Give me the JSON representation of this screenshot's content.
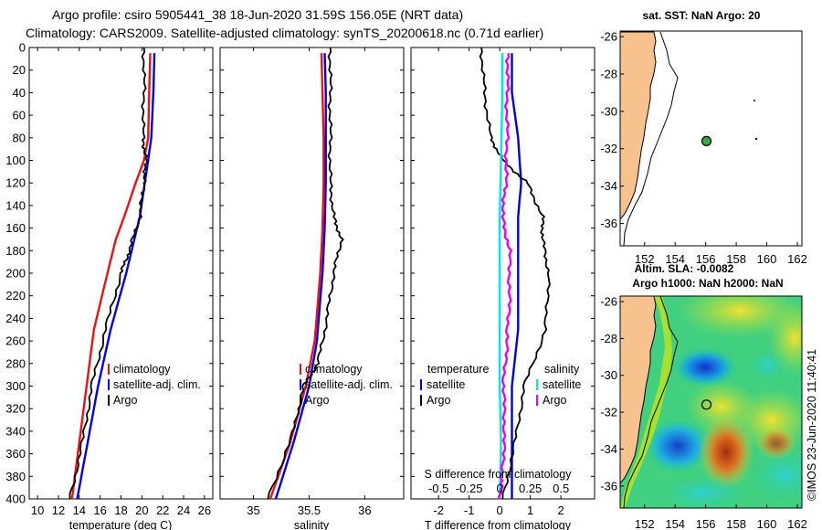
{
  "title": {
    "line1": "Argo profile: csiro 5905441_38 18-Jun-2020 31.59S 156.05E (NRT data)",
    "line2": "Climatology: CARS2009. Satellite-adjusted climatology: synTS_20200618.nc (0.71d earlier)"
  },
  "credit": "©IMOS 23-Jun-2020 11:40:41",
  "colors": {
    "red": "#ee1111",
    "blue": "#0000ee",
    "black": "#000000",
    "cyan": "#00e5ee",
    "magenta": "#ee00ee",
    "land": "#f8c28e"
  },
  "chart_data": [
    {
      "type": "line",
      "name": "temperature",
      "xlabel": "temperature (deg C)",
      "xlim": [
        9.2,
        26.8
      ],
      "ylim": [
        0,
        400
      ],
      "xticks": [
        "10",
        "12",
        "14",
        "16",
        "18",
        "20",
        "22",
        "24",
        "26"
      ],
      "yticks": [
        "0",
        "20",
        "40",
        "60",
        "80",
        "100",
        "120",
        "140",
        "160",
        "180",
        "200",
        "220",
        "240",
        "260",
        "280",
        "300",
        "320",
        "340",
        "360",
        "380",
        "400"
      ],
      "legend": [
        "climatology",
        "satellite-adj. clim.",
        "Argo"
      ],
      "series": [
        {
          "name": "climatology",
          "color": "red",
          "depth": [
            5,
            40,
            80,
            100,
            120,
            150,
            170,
            200,
            250,
            300,
            350,
            400
          ],
          "values": [
            20.8,
            20.7,
            20.6,
            20.2,
            19.4,
            18.3,
            17.5,
            16.7,
            15.4,
            14.7,
            14.0,
            13.3
          ]
        },
        {
          "name": "satellite-adj. clim.",
          "color": "blue",
          "depth": [
            5,
            40,
            80,
            100,
            150,
            200,
            250,
            300,
            350,
            400
          ],
          "values": [
            21.2,
            21.1,
            20.9,
            20.6,
            19.8,
            18.5,
            17.0,
            15.8,
            14.8,
            13.8
          ]
        },
        {
          "name": "Argo",
          "color": "black",
          "depth": [
            0,
            40,
            80,
            100,
            120,
            150,
            180,
            200,
            250,
            300,
            350,
            400
          ],
          "values": [
            20.2,
            20.2,
            20.1,
            20.4,
            20.2,
            19.8,
            18.8,
            18.0,
            16.5,
            15.2,
            14.3,
            13.1
          ]
        }
      ]
    },
    {
      "type": "line",
      "name": "salinity",
      "xlabel": "salinity",
      "xlim": [
        34.7,
        36.35
      ],
      "ylim": [
        0,
        400
      ],
      "xticks": [
        "35",
        "35.5",
        "36"
      ],
      "legend": [
        "climatology",
        "satellite-adj. clim.",
        "Argo"
      ],
      "series": [
        {
          "name": "climatology",
          "color": "red",
          "depth": [
            5,
            40,
            80,
            120,
            160,
            200,
            260,
            300,
            350,
            400
          ],
          "values": [
            35.61,
            35.62,
            35.63,
            35.63,
            35.62,
            35.6,
            35.55,
            35.47,
            35.33,
            35.15
          ]
        },
        {
          "name": "satellite-adj. clim.",
          "color": "blue",
          "depth": [
            5,
            40,
            80,
            120,
            160,
            200,
            260,
            300,
            350,
            400
          ],
          "values": [
            35.64,
            35.65,
            35.65,
            35.65,
            35.64,
            35.62,
            35.57,
            35.5,
            35.36,
            35.2
          ]
        },
        {
          "name": "Argo",
          "color": "black",
          "depth": [
            0,
            40,
            80,
            120,
            150,
            170,
            200,
            240,
            280,
            300,
            340,
            400
          ],
          "values": [
            35.69,
            35.69,
            35.69,
            35.69,
            35.72,
            35.79,
            35.72,
            35.66,
            35.58,
            35.45,
            35.36,
            35.13
          ]
        }
      ]
    },
    {
      "type": "line",
      "name": "difference from climatology",
      "xlabel": "T difference from climatology",
      "xlabel_top": "S difference from climatology",
      "xlim": [
        -2.9,
        3.1
      ],
      "xlim_s": [
        -0.725,
        0.775
      ],
      "ylim": [
        0,
        400
      ],
      "xticks": [
        "-2",
        "-1",
        "0",
        "1",
        "2"
      ],
      "xticks_top": [
        "-0.5",
        "-0.25",
        "0",
        "0.25",
        "0.5"
      ],
      "legend_t_title": "temperature",
      "legend_s_title": "salinity",
      "legend_t": [
        "satellite",
        "Argo"
      ],
      "legend_s": [
        "satellite",
        "Argo"
      ],
      "series": [
        {
          "name": "T satellite",
          "color": "blue",
          "axis": "T",
          "depth": [
            5,
            40,
            80,
            120,
            150,
            200,
            250,
            300,
            350,
            400
          ],
          "values": [
            0.4,
            0.4,
            0.6,
            0.7,
            0.6,
            0.6,
            0.6,
            0.4,
            0.4,
            0.4
          ]
        },
        {
          "name": "T Argo",
          "color": "black",
          "axis": "T",
          "depth": [
            0,
            40,
            80,
            100,
            120,
            150,
            170,
            200,
            250,
            300,
            350,
            400
          ],
          "values": [
            -0.6,
            -0.5,
            -0.3,
            0.1,
            0.9,
            1.4,
            1.4,
            1.6,
            1.5,
            0.8,
            0.5,
            0.1
          ]
        },
        {
          "name": "S satellite",
          "color": "cyan",
          "axis": "S",
          "depth": [
            5,
            50,
            100,
            150,
            200,
            250,
            300,
            350,
            400
          ],
          "values": [
            0.02,
            0.02,
            0.01,
            0.0,
            0.0,
            0.0,
            0.0,
            0.01,
            0.0
          ]
        },
        {
          "name": "S Argo",
          "color": "magenta",
          "axis": "S",
          "depth": [
            5,
            40,
            80,
            120,
            150,
            180,
            220,
            260,
            300,
            340,
            380,
            400
          ],
          "values": [
            0.07,
            0.06,
            0.06,
            0.05,
            0.02,
            0.08,
            0.08,
            0.06,
            0.03,
            0.04,
            0.02,
            0.0
          ]
        }
      ]
    }
  ],
  "maps": [
    {
      "name": "sst-map",
      "title": "sat. SST: NaN Argo: 20",
      "lon_ticks": [
        "152",
        "154",
        "156",
        "158",
        "160",
        "162"
      ],
      "lat_ticks": [
        "-26",
        "-28",
        "-30",
        "-32",
        "-34",
        "-36"
      ],
      "lon_range": [
        150.4,
        162.3
      ],
      "lat_range": [
        -25.7,
        -37.2
      ],
      "argo_lon": 156.05,
      "argo_lat": -31.59
    },
    {
      "name": "sla-map",
      "title_top": "Altim. SLA: -0.0082",
      "title": "Argo h1000: NaN h2000: NaN",
      "lon_ticks": [
        "152",
        "154",
        "156",
        "158",
        "160",
        "162"
      ],
      "lat_ticks": [
        "-26",
        "-28",
        "-30",
        "-32",
        "-34",
        "-36"
      ],
      "lon_range": [
        150.4,
        162.3
      ],
      "lat_range": [
        -25.7,
        -37.2
      ],
      "argo_lon": 156.05,
      "argo_lat": -31.59
    }
  ]
}
